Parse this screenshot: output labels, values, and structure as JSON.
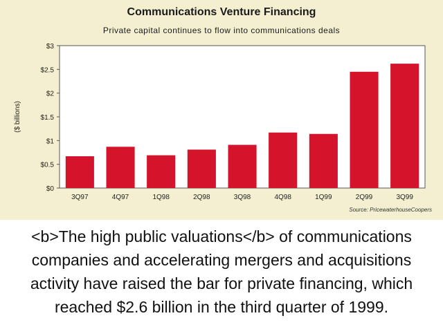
{
  "caption": "<b>The high public valuations</b> of communications companies and accelerating mergers and acquisitions activity have raised the bar for private financing, which reached $2.6 billion in the third quarter of 1999.",
  "source": "Source: PricewaterhouseCoopers",
  "colors": {
    "bar": "#d4142a",
    "panel": "#f3efd0",
    "plot": "#ffffff"
  },
  "chart_data": {
    "type": "bar",
    "title": "Communications Venture Financing",
    "subtitle": "Private capital continues to flow into communications deals",
    "ylabel": "($ billions)",
    "xlabel": "",
    "categories": [
      "3Q97",
      "4Q97",
      "1Q98",
      "2Q98",
      "3Q98",
      "4Q98",
      "1Q99",
      "2Q99",
      "3Q99"
    ],
    "values": [
      0.67,
      0.87,
      0.69,
      0.81,
      0.91,
      1.17,
      1.14,
      2.45,
      2.62
    ],
    "ylim": [
      0,
      3
    ],
    "yticks": [
      0,
      0.5,
      1,
      1.5,
      2,
      2.5,
      3
    ],
    "ytick_labels": [
      "$0",
      "$0.5",
      "$1",
      "$1.5",
      "$2",
      "$2.5",
      "$3"
    ],
    "grid": false,
    "legend": "none"
  }
}
